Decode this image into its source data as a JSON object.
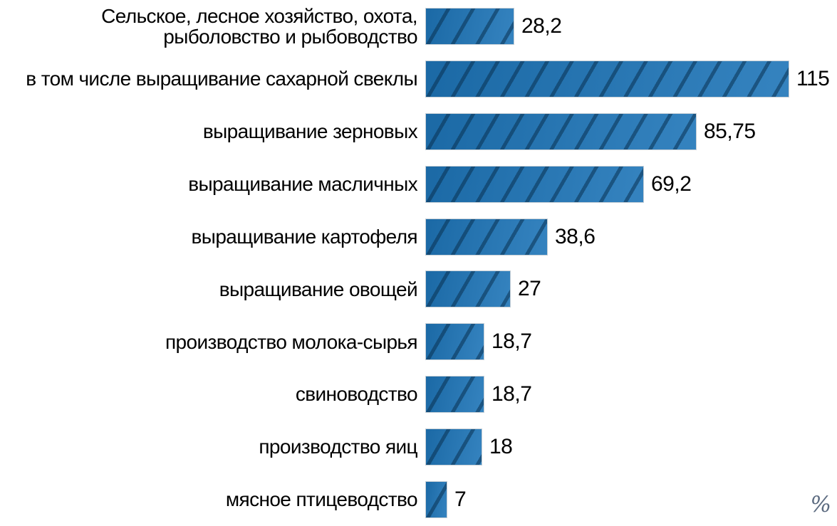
{
  "page": {
    "background_color": "#ffffff"
  },
  "chart_data": {
    "type": "bar",
    "orientation": "horizontal",
    "title": "",
    "xlabel": "",
    "ylabel": "",
    "unit_label": "%",
    "xlim": [
      0,
      130
    ],
    "grid": false,
    "legend": false,
    "categories": [
      "Сельское, лесное хозяйство, охота,\nрыболовство и рыбоводство",
      "в том числе выращивание сахарной свеклы",
      "выращивание зерновых",
      "выращивание масличных",
      "выращивание картофеля",
      "выращивание овощей",
      "производство молока-сырья",
      "свиноводство",
      "производство яиц",
      "мясное птицеводство"
    ],
    "values": [
      28.2,
      115,
      85.75,
      69.2,
      38.6,
      27,
      18.7,
      18.7,
      18,
      7
    ],
    "value_labels": [
      "28,2",
      "115",
      "85,75",
      "69,2",
      "38,6",
      "27",
      "18,7",
      "18,7",
      "18",
      "7"
    ],
    "colors": {
      "bar_fill": "#1e75b8",
      "bar_hatch": "#0e4a77",
      "bar_border": "#c6cfd6",
      "label_text": "#000000",
      "value_text": "#000000",
      "unit_text": "#5c6b80"
    },
    "hatch_style": "forward-diagonal"
  }
}
